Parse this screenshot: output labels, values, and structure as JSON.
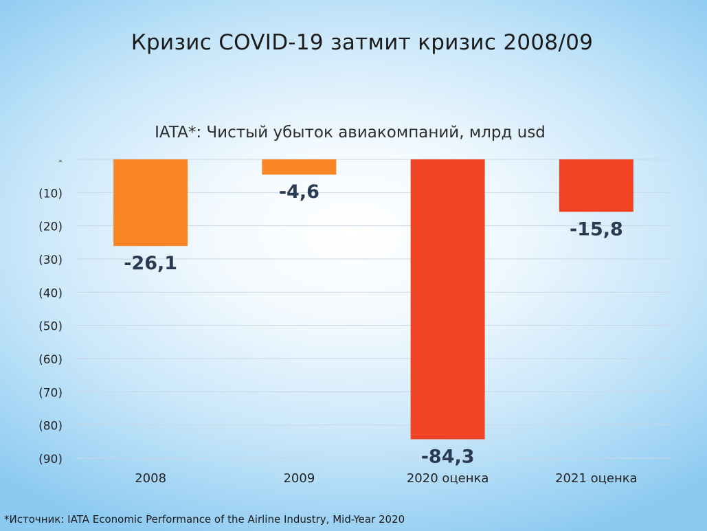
{
  "slide": {
    "title": "Кризис COVID-19 затмит кризис 2008/09",
    "footnote": "*Источник: IATA Economic Performance of the Airline Industry, Mid-Year 2020"
  },
  "chart_data": {
    "type": "bar",
    "title": "IATA*: Чистый убыток авиакомпаний, млрд usd",
    "xlabel": "",
    "ylabel": "",
    "categories": [
      "2008",
      "2009",
      "2020 оценка",
      "2021 оценка"
    ],
    "values": [
      -26.1,
      -4.6,
      -84.3,
      -15.8
    ],
    "data_labels": [
      "-26,1",
      "-4,6",
      "-84,3",
      "-15,8"
    ],
    "ylim": [
      -90,
      0
    ],
    "yticks": [
      0,
      -10,
      -20,
      -30,
      -40,
      -50,
      -60,
      -70,
      -80,
      -90
    ],
    "ytick_labels": [
      "-",
      "(10)",
      "(20)",
      "(30)",
      "(40)",
      "(50)",
      "(60)",
      "(70)",
      "(80)",
      "(90)"
    ],
    "grid": true,
    "legend": "none",
    "colors": [
      "#f98524",
      "#f98524",
      "#ef4326",
      "#ef4326"
    ]
  }
}
